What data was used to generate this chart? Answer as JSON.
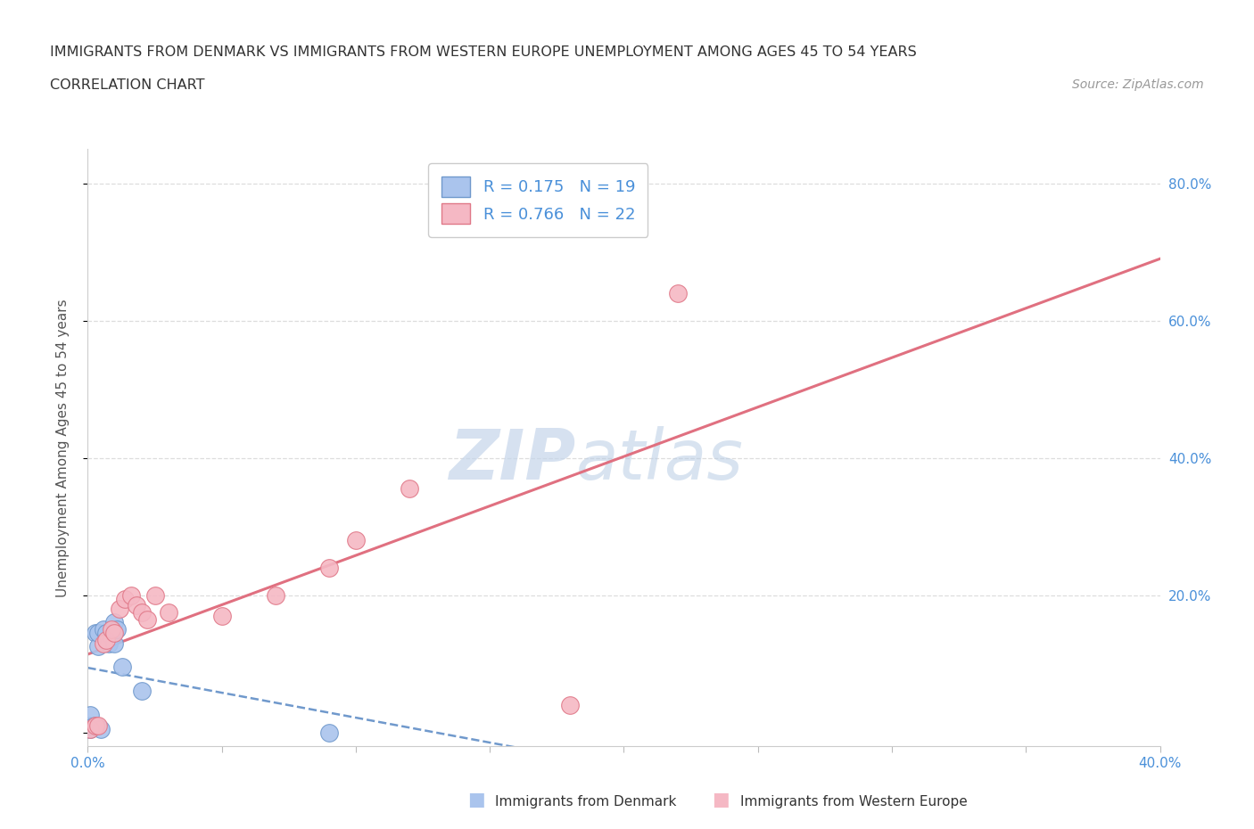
{
  "title_line1": "IMMIGRANTS FROM DENMARK VS IMMIGRANTS FROM WESTERN EUROPE UNEMPLOYMENT AMONG AGES 45 TO 54 YEARS",
  "title_line2": "CORRELATION CHART",
  "source_text": "Source: ZipAtlas.com",
  "ylabel": "Unemployment Among Ages 45 to 54 years",
  "xlim": [
    0.0,
    0.4
  ],
  "ylim": [
    -0.02,
    0.85
  ],
  "xticks": [
    0.0,
    0.05,
    0.1,
    0.15,
    0.2,
    0.25,
    0.3,
    0.35,
    0.4
  ],
  "xtick_labels": [
    "0.0%",
    "",
    "",
    "",
    "",
    "",
    "",
    "",
    "40.0%"
  ],
  "yticks": [
    0.0,
    0.2,
    0.4,
    0.6,
    0.8
  ],
  "ytick_labels_right": [
    "",
    "20.0%",
    "40.0%",
    "60.0%",
    "80.0%"
  ],
  "denmark_color": "#aac4ed",
  "denmark_edge_color": "#7099cc",
  "western_europe_color": "#f5b8c4",
  "western_europe_edge_color": "#e07888",
  "denmark_trend_color": "#7099cc",
  "western_europe_trend_color": "#e07080",
  "watermark_color": "#d0dff5",
  "bg_color": "#ffffff",
  "plot_bg_color": "#ffffff",
  "grid_color": "#dddddd",
  "tick_label_color_right": "#4a90d9",
  "tick_label_color_bottom": "#4a90d9",
  "denmark_scatter_x": [
    0.001,
    0.001,
    0.001,
    0.002,
    0.003,
    0.003,
    0.004,
    0.004,
    0.005,
    0.006,
    0.007,
    0.008,
    0.009,
    0.01,
    0.01,
    0.011,
    0.013,
    0.02,
    0.09
  ],
  "denmark_scatter_y": [
    0.005,
    0.01,
    0.025,
    0.008,
    0.01,
    0.145,
    0.125,
    0.145,
    0.005,
    0.15,
    0.145,
    0.13,
    0.14,
    0.13,
    0.16,
    0.15,
    0.095,
    0.06,
    0.0
  ],
  "western_europe_scatter_x": [
    0.001,
    0.003,
    0.004,
    0.006,
    0.007,
    0.009,
    0.01,
    0.012,
    0.014,
    0.016,
    0.018,
    0.02,
    0.022,
    0.025,
    0.03,
    0.05,
    0.07,
    0.09,
    0.1,
    0.12,
    0.18,
    0.22
  ],
  "western_europe_scatter_y": [
    0.005,
    0.01,
    0.01,
    0.13,
    0.135,
    0.15,
    0.145,
    0.18,
    0.195,
    0.2,
    0.185,
    0.175,
    0.165,
    0.2,
    0.175,
    0.17,
    0.2,
    0.24,
    0.28,
    0.355,
    0.04,
    0.64
  ]
}
